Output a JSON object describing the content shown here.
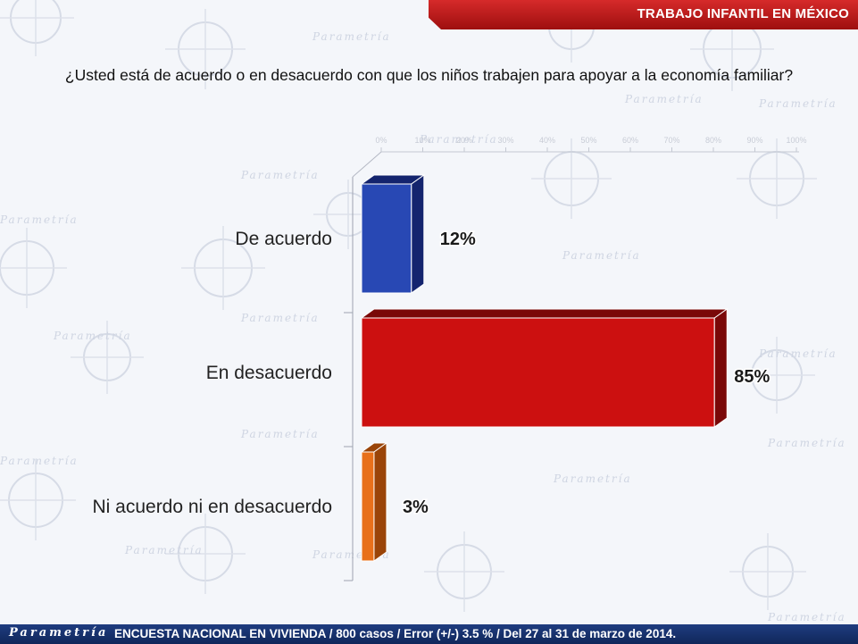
{
  "header": {
    "title": "TRABAJO INFANTIL EN MÉXICO"
  },
  "question": "¿Usted está de acuerdo o en desacuerdo con que los niños trabajen para apoyar a la economía familiar?",
  "chart_data": {
    "type": "bar",
    "orientation": "horizontal",
    "categories": [
      "De acuerdo",
      "En desacuerdo",
      "Ni acuerdo ni en desacuerdo"
    ],
    "values": [
      12,
      85,
      3
    ],
    "value_labels": [
      "12%",
      "85%",
      "3%"
    ],
    "colors": [
      "#2848b4",
      "#cc1010",
      "#e8701a"
    ],
    "side_colors": [
      "#14246e",
      "#7a0808",
      "#9a4408"
    ],
    "x_ticks": [
      "0%",
      "10%",
      "20%",
      "30%",
      "40%",
      "50%",
      "60%",
      "70%",
      "80%",
      "90%",
      "100%"
    ],
    "xlim": [
      0,
      100
    ],
    "grid": false,
    "legend": "none"
  },
  "footer": {
    "logo": "Parametría",
    "text": "ENCUESTA NACIONAL EN VIVIENDA / 800 casos / Error (+/-) 3.5 % / Del 27 al 31 de marzo de 2014."
  },
  "background": {
    "watermark": "Parametría"
  }
}
